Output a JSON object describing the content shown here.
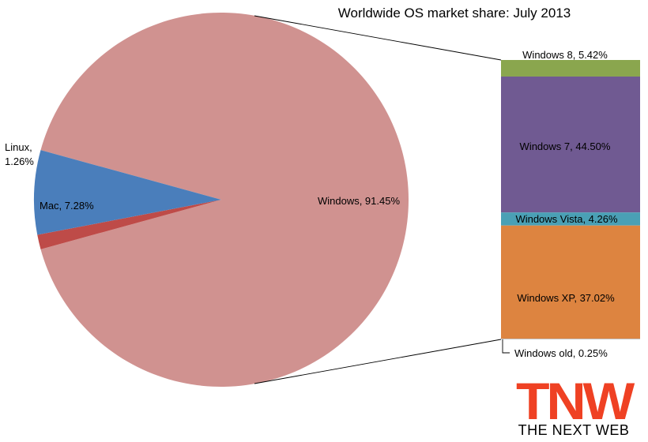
{
  "chart_data": {
    "type": "pie",
    "title": "Worldwide OS market share: July 2013",
    "pie": {
      "slices": [
        {
          "label": "Windows, 91.45%",
          "name": "Windows",
          "value": 91.45,
          "color": "#d09290"
        },
        {
          "label": "Linux, 1.26%",
          "name": "Linux",
          "value": 1.26,
          "color": "#be4b48"
        },
        {
          "label": "Mac, 7.28%",
          "name": "Mac",
          "value": 7.28,
          "color": "#4a7ebb"
        }
      ]
    },
    "breakdown": {
      "of": "Windows",
      "segments": [
        {
          "label": "Windows 8, 5.42%",
          "name": "Windows 8",
          "value": 5.42,
          "color": "#8aa64e"
        },
        {
          "label": "Windows 7, 44.50%",
          "name": "Windows 7",
          "value": 44.5,
          "color": "#705a92"
        },
        {
          "label": "Windows Vista, 4.26%",
          "name": "Windows Vista",
          "value": 4.26,
          "color": "#4aa0b5"
        },
        {
          "label": "Windows XP, 37.02%",
          "name": "Windows XP",
          "value": 37.02,
          "color": "#dd8440"
        },
        {
          "label": "Windows old, 0.25%",
          "name": "Windows old",
          "value": 0.25,
          "color": "#c0c0c0"
        }
      ]
    }
  },
  "logo": {
    "text": "TNW",
    "subtitle": "THE NEXT WEB",
    "color": "#ef4123"
  }
}
